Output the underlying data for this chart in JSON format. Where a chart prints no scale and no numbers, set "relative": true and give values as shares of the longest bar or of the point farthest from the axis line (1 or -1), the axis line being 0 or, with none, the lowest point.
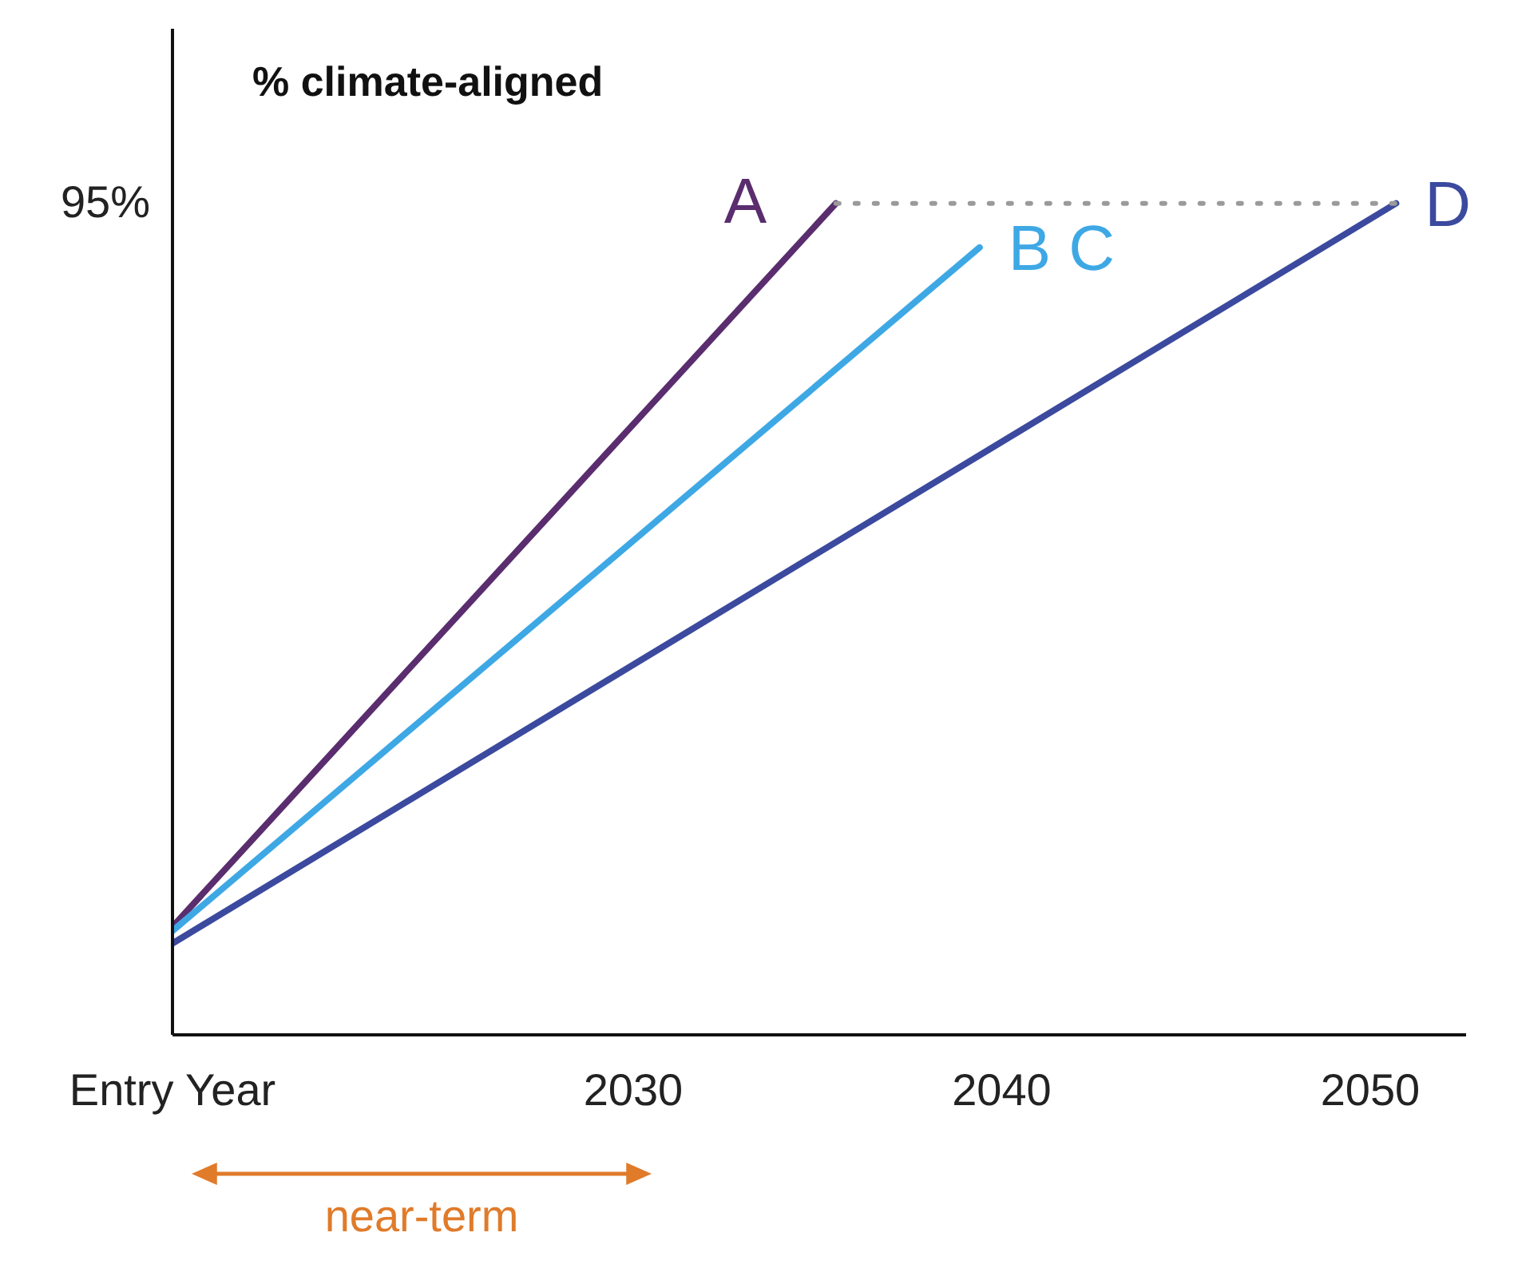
{
  "chart_data": {
    "type": "line",
    "title": "% climate-aligned",
    "xlim": [
      2017.5,
      2052.6
    ],
    "xticks": [
      {
        "value": 2017.5,
        "label": "Entry Year"
      },
      2030,
      2040,
      2050
    ],
    "relative": true,
    "series": [
      {
        "name": "A",
        "color": "#5a2d6e",
        "x": [
          2017.5,
          2035.5
        ],
        "values": [
          0.13,
          1
        ]
      },
      {
        "name": "B C",
        "color": "#3ea8e5",
        "x": [
          2017.5,
          2039.4
        ],
        "values": [
          0.125,
          0.947
        ]
      },
      {
        "name": "D",
        "color": "#3b4a9e",
        "x": [
          2017.5,
          2050.7
        ],
        "values": [
          0.11,
          1
        ]
      },
      {
        "color": "#9a9a9a",
        "line_style": "dotted",
        "x": [
          2035.5,
          2050.7
        ],
        "values": [
          1,
          1
        ]
      }
    ],
    "annotations": [
      "95%",
      "near-term"
    ],
    "grid": false,
    "legend": false,
    "marker": "none"
  }
}
